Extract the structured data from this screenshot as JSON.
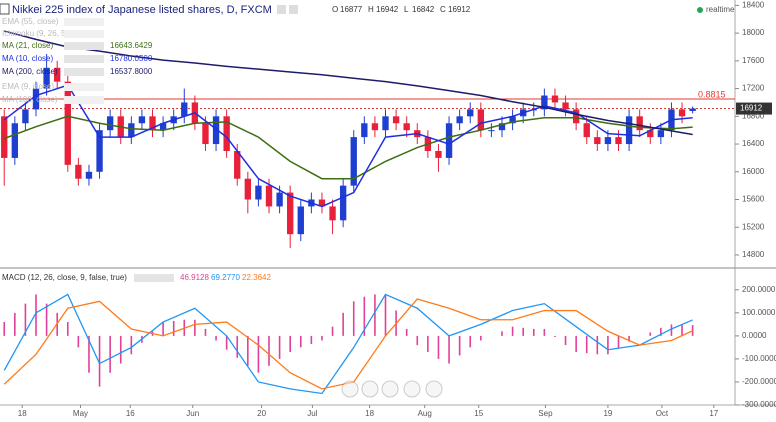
{
  "chart_data": [
    {
      "type": "candlestick",
      "title": "Nikkei 225 index of Japanese listed shares, D, FXCM",
      "ohlc_legend": [
        {
          "label": "O",
          "value": 16877
        },
        {
          "label": "H",
          "value": 16942
        },
        {
          "label": "L",
          "value": 16842
        },
        {
          "label": "C",
          "value": 16912
        }
      ],
      "status": "realtime",
      "hidden_studies": [
        "EMA (55, close)",
        "Ichimoku (9, 26, 52, 26)"
      ],
      "hidden_studies_bottom": [
        "EMA (9, close)",
        "MA (100, close)"
      ],
      "xlim": [
        -0.4,
        69
      ],
      "xticks": [
        {
          "value": 1.7,
          "label": "18"
        },
        {
          "value": 7.2,
          "label": "May"
        },
        {
          "value": 11.9,
          "label": "16"
        },
        {
          "value": 17.8,
          "label": "Jun"
        },
        {
          "value": 24.3,
          "label": "20"
        },
        {
          "value": 29.1,
          "label": "Jul"
        },
        {
          "value": 34.5,
          "label": "18"
        },
        {
          "value": 39.7,
          "label": "Aug"
        },
        {
          "value": 44.8,
          "label": "15"
        },
        {
          "value": 51.1,
          "label": "Sep"
        },
        {
          "value": 57.0,
          "label": "19"
        },
        {
          "value": 62.1,
          "label": "Oct"
        },
        {
          "value": 67.0,
          "label": "17"
        }
      ],
      "ylim": [
        14612,
        18478
      ],
      "yticks": [
        14800,
        15200,
        15600,
        16000,
        16400,
        16800,
        17200,
        17600,
        18000,
        18400
      ],
      "up_color": "#1f3fd1",
      "down_color": "#e8203a",
      "open": [
        16800,
        16200,
        16700,
        16900,
        17200,
        17500,
        17300,
        16100,
        15900,
        16000,
        16600,
        16800,
        16500,
        16700,
        16800,
        16600,
        16700,
        16800,
        17000,
        16700,
        16400,
        16800,
        16300,
        15900,
        15600,
        15800,
        15500,
        15700,
        15100,
        15500,
        15600,
        15500,
        15300,
        15800,
        16500,
        16700,
        16600,
        16800,
        16700,
        16600,
        16500,
        16300,
        16200,
        16700,
        16800,
        16900,
        16600,
        16600,
        16700,
        16800,
        16900,
        16900,
        17100,
        17000,
        16900,
        16700,
        16500,
        16400,
        16500,
        16400,
        16800,
        16600,
        16500,
        16600,
        16900,
        16877
      ],
      "high": [
        16900,
        16800,
        17000,
        17300,
        17700,
        17600,
        17400,
        16200,
        16100,
        16700,
        16900,
        16900,
        16800,
        16900,
        16900,
        16800,
        16900,
        17200,
        17100,
        16800,
        16900,
        16900,
        16400,
        16000,
        15900,
        15900,
        15800,
        15800,
        15600,
        15700,
        15700,
        15600,
        15900,
        16600,
        16800,
        16800,
        16900,
        16900,
        16800,
        16700,
        16600,
        16400,
        16800,
        16900,
        17000,
        17000,
        16700,
        16800,
        16900,
        17000,
        17000,
        17200,
        17200,
        17100,
        17000,
        16800,
        16600,
        16600,
        16600,
        16900,
        16900,
        16700,
        16700,
        17000,
        17000,
        16942
      ],
      "low": [
        15800,
        16100,
        16600,
        16800,
        17100,
        17200,
        16000,
        15800,
        15800,
        15900,
        16500,
        16400,
        16400,
        16600,
        16500,
        16500,
        16600,
        16700,
        16600,
        16300,
        16300,
        16200,
        15800,
        15400,
        15500,
        15400,
        15400,
        14900,
        15000,
        15400,
        15400,
        15100,
        15200,
        15700,
        16400,
        16500,
        16500,
        16600,
        16500,
        16400,
        16200,
        16000,
        16100,
        16600,
        16700,
        16500,
        16500,
        16500,
        16600,
        16700,
        16800,
        16800,
        16900,
        16800,
        16600,
        16400,
        16300,
        16300,
        16300,
        16300,
        16500,
        16400,
        16400,
        16500,
        16700,
        16842
      ],
      "close": [
        16200,
        16700,
        16900,
        17200,
        17500,
        17300,
        16100,
        15900,
        16000,
        16600,
        16800,
        16500,
        16700,
        16800,
        16600,
        16700,
        16800,
        17000,
        16700,
        16400,
        16800,
        16300,
        15900,
        15600,
        15800,
        15500,
        15700,
        15100,
        15500,
        15600,
        15500,
        15300,
        15800,
        16500,
        16700,
        16600,
        16800,
        16700,
        16600,
        16500,
        16300,
        16200,
        16700,
        16800,
        16900,
        16600,
        16600,
        16700,
        16800,
        16900,
        16900,
        17100,
        17000,
        16900,
        16700,
        16500,
        16400,
        16500,
        16400,
        16800,
        16600,
        16500,
        16600,
        16900,
        16800,
        16912
      ],
      "overlay_x": [
        0,
        3,
        6,
        9,
        12,
        15,
        18,
        21,
        24,
        27,
        30,
        33,
        36,
        39,
        42,
        45,
        48,
        51,
        54,
        57,
        60,
        63,
        65
      ],
      "series": [
        {
          "name": "MA (21, close)",
          "legend_value": "16643.6429",
          "color": "#3c6e12",
          "values": [
            16480,
            16650,
            16800,
            16700,
            16620,
            16600,
            16700,
            16720,
            16500,
            16150,
            15900,
            15900,
            16150,
            16350,
            16500,
            16600,
            16720,
            16780,
            16780,
            16700,
            16640,
            16620,
            16644
          ]
        },
        {
          "name": "MA (10, close)",
          "legend_value": "16780.0500",
          "color": "#1f2fe0",
          "values": [
            16750,
            17100,
            17250,
            16500,
            16500,
            16700,
            16850,
            16500,
            15900,
            15650,
            15500,
            15700,
            16500,
            16550,
            16400,
            16700,
            16800,
            16950,
            16850,
            16550,
            16520,
            16750,
            16780
          ]
        },
        {
          "name": "MA (200, close)",
          "legend_value": "16537.8000",
          "color": "#1d1b6b",
          "values": [
            18030,
            17910,
            17800,
            17740,
            17670,
            17610,
            17570,
            17520,
            17480,
            17440,
            17400,
            17350,
            17300,
            17240,
            17170,
            17100,
            17010,
            16930,
            16830,
            16740,
            16670,
            16590,
            16538
          ]
        }
      ],
      "level": {
        "value": 17050,
        "label": "0.8815",
        "color": "#e53935"
      },
      "last_price": 16912
    },
    {
      "type": "macd",
      "title": "MACD (12, 26, close, 9, false, true)",
      "legend_values": [
        {
          "label": "46.9128",
          "color": "#e0409a"
        },
        {
          "label": "69.2770",
          "color": "#2196f3"
        },
        {
          "label": "22.3642",
          "color": "#ff7a1a"
        }
      ],
      "ylim": [
        -300,
        286
      ],
      "yticks": [
        {
          "value": -300,
          "label": "-300.0000"
        },
        {
          "value": -200,
          "label": "-200.0000"
        },
        {
          "value": -100,
          "label": "-100.0000"
        },
        {
          "value": 0,
          "label": "0.0000"
        },
        {
          "value": 100,
          "label": "100.0000"
        },
        {
          "value": 200,
          "label": "200.0000"
        }
      ],
      "histogram_color": "#e0409a",
      "histogram": [
        60,
        100,
        140,
        180,
        140,
        100,
        60,
        -50,
        -160,
        -220,
        -160,
        -120,
        -80,
        -30,
        20,
        60,
        65,
        70,
        70,
        30,
        -20,
        -60,
        -95,
        -130,
        -160,
        -130,
        -100,
        -70,
        -50,
        -35,
        -20,
        40,
        100,
        150,
        170,
        180,
        180,
        110,
        30,
        -40,
        -70,
        -100,
        -120,
        -85,
        -50,
        -20,
        0,
        20,
        40,
        35,
        30,
        30,
        -5,
        -40,
        -70,
        -75,
        -80,
        -80,
        -55,
        -25,
        0,
        15,
        35,
        50,
        48,
        46.9128
      ],
      "series": [
        {
          "name": "MACD",
          "color": "#2196f3",
          "values": [
            -150,
            100,
            180,
            -120,
            -50,
            60,
            120,
            0,
            -200,
            -230,
            -250,
            -50,
            180,
            120,
            0,
            50,
            110,
            140,
            40,
            -60,
            -40,
            30,
            69.277
          ]
        },
        {
          "name": "Signal",
          "color": "#ff7a1a",
          "values": [
            -210,
            -80,
            120,
            150,
            30,
            0,
            50,
            60,
            -40,
            -160,
            -230,
            -200,
            0,
            160,
            120,
            70,
            70,
            110,
            110,
            20,
            -40,
            -20,
            22.3642
          ]
        }
      ]
    }
  ]
}
